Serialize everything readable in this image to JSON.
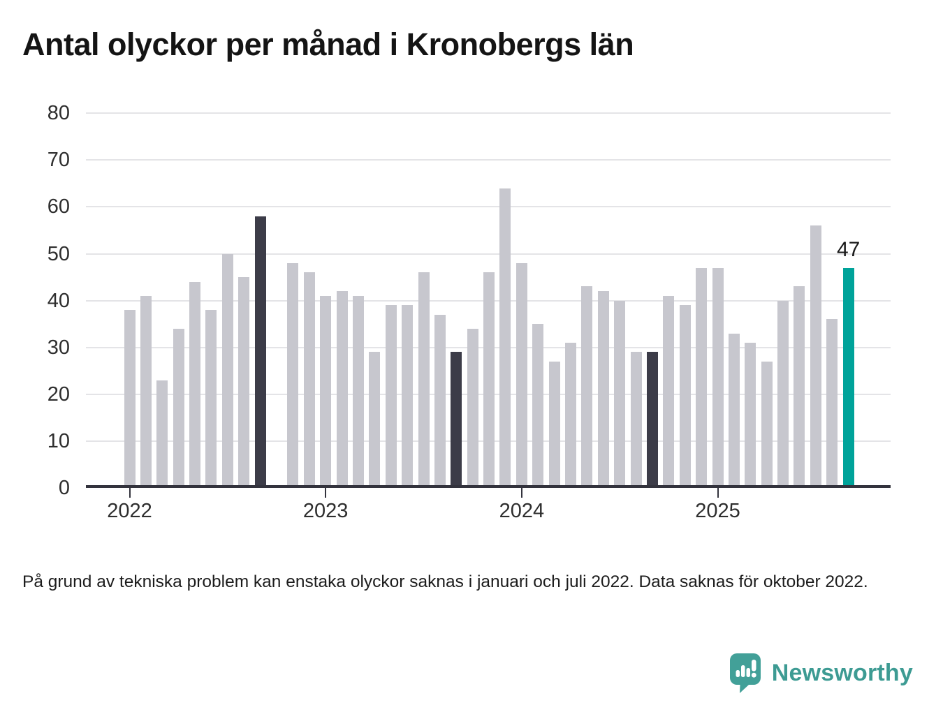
{
  "title": "Antal olyckor per månad i Kronobergs län",
  "footnote": "På grund av tekniska problem kan enstaka olyckor saknas i januari och juli 2022. Data saknas för oktober 2022.",
  "branding": {
    "name": "Newsworthy",
    "color": "#3d9b93"
  },
  "colors": {
    "bar_normal": "#c7c7ce",
    "bar_dark": "#3c3c48",
    "bar_highlight": "#00a39a",
    "grid": "#e4e4e7",
    "axis": "#33333d",
    "label": "#2e2e2e"
  },
  "chart_data": {
    "type": "bar",
    "title": "Antal olyckor per månad i Kronobergs län",
    "xlabel": "",
    "ylabel": "",
    "ylim": [
      0,
      80
    ],
    "y_ticks": [
      0,
      10,
      20,
      30,
      40,
      50,
      60,
      70,
      80
    ],
    "grid": true,
    "x_year_ticks": [
      {
        "label": "2022",
        "month_index": 0
      },
      {
        "label": "2023",
        "month_index": 12
      },
      {
        "label": "2024",
        "month_index": 24
      },
      {
        "label": "2025",
        "month_index": 36
      }
    ],
    "missing_months": [
      "2022-10"
    ],
    "annotation": {
      "month": "2025-09",
      "label": "47"
    },
    "points": [
      {
        "month": "2022-01",
        "value": 38,
        "style": "normal"
      },
      {
        "month": "2022-02",
        "value": 41,
        "style": "normal"
      },
      {
        "month": "2022-03",
        "value": 23,
        "style": "normal"
      },
      {
        "month": "2022-04",
        "value": 34,
        "style": "normal"
      },
      {
        "month": "2022-05",
        "value": 44,
        "style": "normal"
      },
      {
        "month": "2022-06",
        "value": 38,
        "style": "normal"
      },
      {
        "month": "2022-07",
        "value": 50,
        "style": "normal"
      },
      {
        "month": "2022-08",
        "value": 45,
        "style": "normal"
      },
      {
        "month": "2022-09",
        "value": 58,
        "style": "dark"
      },
      {
        "month": "2022-11",
        "value": 48,
        "style": "normal"
      },
      {
        "month": "2022-12",
        "value": 46,
        "style": "normal"
      },
      {
        "month": "2023-01",
        "value": 41,
        "style": "normal"
      },
      {
        "month": "2023-02",
        "value": 42,
        "style": "normal"
      },
      {
        "month": "2023-03",
        "value": 41,
        "style": "normal"
      },
      {
        "month": "2023-04",
        "value": 29,
        "style": "normal"
      },
      {
        "month": "2023-05",
        "value": 39,
        "style": "normal"
      },
      {
        "month": "2023-06",
        "value": 39,
        "style": "normal"
      },
      {
        "month": "2023-07",
        "value": 46,
        "style": "normal"
      },
      {
        "month": "2023-08",
        "value": 37,
        "style": "normal"
      },
      {
        "month": "2023-09",
        "value": 29,
        "style": "dark"
      },
      {
        "month": "2023-10",
        "value": 34,
        "style": "normal"
      },
      {
        "month": "2023-11",
        "value": 46,
        "style": "normal"
      },
      {
        "month": "2023-12",
        "value": 64,
        "style": "normal"
      },
      {
        "month": "2024-01",
        "value": 48,
        "style": "normal"
      },
      {
        "month": "2024-02",
        "value": 35,
        "style": "normal"
      },
      {
        "month": "2024-03",
        "value": 27,
        "style": "normal"
      },
      {
        "month": "2024-04",
        "value": 31,
        "style": "normal"
      },
      {
        "month": "2024-05",
        "value": 43,
        "style": "normal"
      },
      {
        "month": "2024-06",
        "value": 42,
        "style": "normal"
      },
      {
        "month": "2024-07",
        "value": 40,
        "style": "normal"
      },
      {
        "month": "2024-08",
        "value": 29,
        "style": "normal"
      },
      {
        "month": "2024-09",
        "value": 29,
        "style": "dark"
      },
      {
        "month": "2024-10",
        "value": 41,
        "style": "normal"
      },
      {
        "month": "2024-11",
        "value": 39,
        "style": "normal"
      },
      {
        "month": "2024-12",
        "value": 47,
        "style": "normal"
      },
      {
        "month": "2025-01",
        "value": 47,
        "style": "normal"
      },
      {
        "month": "2025-02",
        "value": 33,
        "style": "normal"
      },
      {
        "month": "2025-03",
        "value": 31,
        "style": "normal"
      },
      {
        "month": "2025-04",
        "value": 27,
        "style": "normal"
      },
      {
        "month": "2025-05",
        "value": 40,
        "style": "normal"
      },
      {
        "month": "2025-06",
        "value": 43,
        "style": "normal"
      },
      {
        "month": "2025-07",
        "value": 56,
        "style": "normal"
      },
      {
        "month": "2025-08",
        "value": 36,
        "style": "normal"
      },
      {
        "month": "2025-09",
        "value": 47,
        "style": "highlight"
      }
    ]
  }
}
